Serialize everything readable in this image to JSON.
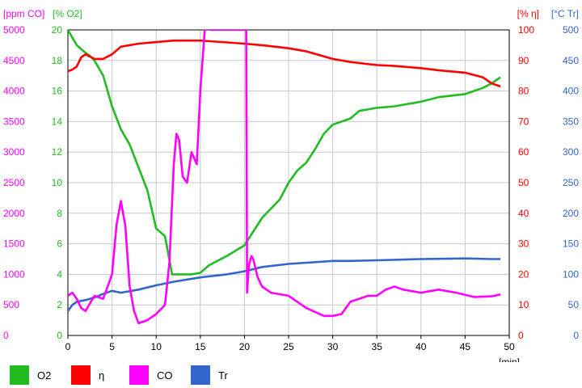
{
  "chart_data": {
    "type": "line",
    "xlabel": "[min]",
    "xlim": [
      0,
      50
    ],
    "x_ticks": [
      0,
      5,
      10,
      15,
      20,
      25,
      30,
      35,
      40,
      45,
      50
    ],
    "grid": true,
    "legend_placement": "bottom",
    "axes": [
      {
        "id": "co",
        "side": "left",
        "outer": true,
        "label": "[ppm CO]",
        "color": "#ff00ff",
        "range": [
          0,
          5000
        ],
        "ticks": [
          0,
          500,
          1000,
          1500,
          2000,
          2500,
          3000,
          3500,
          4000,
          4500,
          5000
        ]
      },
      {
        "id": "o2",
        "side": "left",
        "outer": false,
        "label": "[% O2]",
        "color": "#22bb22",
        "range": [
          0,
          20
        ],
        "ticks": [
          0,
          2,
          4,
          6,
          8,
          10,
          12,
          14,
          16,
          18,
          20
        ]
      },
      {
        "id": "eta",
        "side": "right",
        "outer": false,
        "label": "[% η]",
        "color": "#ff0000",
        "range": [
          0,
          100
        ],
        "ticks": [
          0,
          10,
          20,
          30,
          40,
          50,
          60,
          70,
          80,
          90,
          100
        ]
      },
      {
        "id": "tr",
        "side": "right",
        "outer": true,
        "label": "[°C Tr]",
        "color": "#3366cc",
        "range": [
          0,
          500
        ],
        "ticks": [
          0,
          50,
          100,
          150,
          200,
          250,
          300,
          350,
          400,
          450,
          500
        ]
      }
    ],
    "series": [
      {
        "name": "O2",
        "axis": "o2",
        "color": "#22bb22",
        "x": [
          0,
          1,
          2,
          2.5,
          3,
          4,
          5,
          6,
          7,
          8,
          9,
          10,
          11,
          11.8,
          12.5,
          14,
          15,
          16,
          18,
          20,
          21,
          22,
          23,
          24,
          25,
          26,
          27,
          28,
          29,
          30,
          32,
          33,
          35,
          37,
          40,
          42,
          45,
          47,
          48,
          49
        ],
        "values": [
          20,
          19,
          18.5,
          18.3,
          18,
          17,
          15,
          13.5,
          12.5,
          11,
          9.5,
          7,
          6.5,
          4,
          4,
          4,
          4.1,
          4.6,
          5.2,
          5.9,
          6.8,
          7.7,
          8.3,
          8.9,
          10,
          10.8,
          11.3,
          12.2,
          13.2,
          13.8,
          14.2,
          14.7,
          14.9,
          15,
          15.3,
          15.6,
          15.8,
          16.2,
          16.5,
          16.9
        ]
      },
      {
        "name": "η",
        "axis": "eta",
        "color": "#ff0000",
        "x": [
          0,
          0.5,
          1,
          1.5,
          2,
          3,
          4,
          5,
          6,
          8,
          10,
          12,
          15,
          20,
          22,
          25,
          27,
          30,
          32,
          35,
          37,
          40,
          42,
          45,
          47,
          48,
          49
        ],
        "values": [
          86.5,
          87,
          88,
          91,
          92,
          90.5,
          90.5,
          92,
          94.5,
          95.5,
          96,
          96.5,
          96.5,
          95.5,
          95,
          94,
          93,
          90.5,
          89.5,
          88.5,
          88.2,
          87.5,
          86.8,
          86,
          84.5,
          82.5,
          81.5
        ]
      },
      {
        "name": "CO",
        "axis": "co",
        "color": "#ff00ff",
        "x": [
          0,
          0.5,
          1,
          1.5,
          2,
          3,
          4,
          5,
          5.5,
          6,
          6.5,
          7,
          7.5,
          8,
          9,
          10,
          11,
          11.5,
          12,
          12.3,
          12.6,
          13,
          13.5,
          14,
          14.3,
          14.6,
          15,
          15.5,
          15.9,
          16.1,
          20.2,
          20.3,
          20.5,
          20.8,
          21,
          21.5,
          22,
          23,
          25,
          27,
          29,
          30,
          31,
          32,
          34,
          35,
          36,
          37,
          38,
          40,
          42,
          44,
          46,
          48,
          49
        ],
        "values": [
          650,
          700,
          600,
          450,
          400,
          650,
          600,
          1000,
          1800,
          2200,
          1800,
          800,
          400,
          200,
          250,
          350,
          500,
          1200,
          2800,
          3300,
          3200,
          2600,
          2500,
          3000,
          2900,
          2800,
          4000,
          5000,
          5600,
          5000,
          5000,
          700,
          1150,
          1300,
          1250,
          950,
          800,
          700,
          650,
          450,
          320,
          320,
          350,
          550,
          650,
          650,
          750,
          800,
          750,
          700,
          750,
          700,
          630,
          640,
          670
        ]
      },
      {
        "name": "Tr",
        "axis": "tr",
        "color": "#3366cc",
        "x": [
          0,
          0.5,
          1,
          2,
          3,
          4,
          5,
          6,
          8,
          10,
          12,
          15,
          18,
          20,
          22,
          25,
          28,
          30,
          32,
          35,
          40,
          45,
          48,
          49
        ],
        "values": [
          40,
          50,
          55,
          58,
          62,
          68,
          73,
          70,
          75,
          82,
          88,
          95,
          100,
          105,
          112,
          117,
          120,
          122,
          122,
          123,
          125,
          126,
          125,
          125
        ]
      }
    ]
  }
}
